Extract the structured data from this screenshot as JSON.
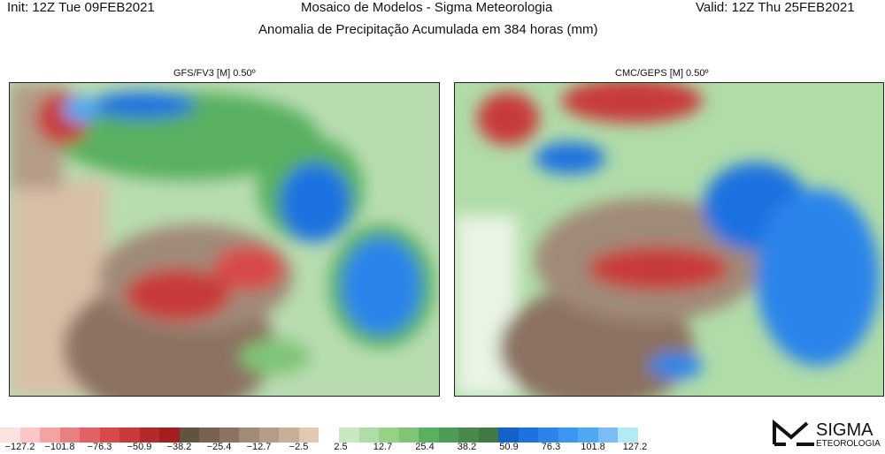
{
  "header": {
    "init": "Init: 12Z Tue 09FEB2021",
    "title": "Mosaico de Modelos - Sigma Meteorologia",
    "valid": "Valid: 12Z Thu 25FEB2021",
    "subtitle": "Anomalia de Precipitação Acumulada em 384 horas (mm)"
  },
  "panels": [
    {
      "title": "GFS/FV3 [M] 0.50º"
    },
    {
      "title": "CMC/GEPS [M] 0.50º"
    }
  ],
  "colorbar": {
    "negative_colors": [
      "#fde2e2",
      "#fcc6c6",
      "#f4a2a2",
      "#e98080",
      "#e06262",
      "#d84a4a",
      "#c83a3a",
      "#b22a2a",
      "#a21f1f",
      "#625242",
      "#786252",
      "#8c7262",
      "#a08a78",
      "#b49c88",
      "#c8b098",
      "#e2c8b0"
    ],
    "negative_labels": [
      "−127.2",
      "−101.8",
      "−76.3",
      "−50.9",
      "−38.2",
      "−25.4",
      "−12.7",
      "−2.5"
    ],
    "positive_colors": [
      "#c8e8c0",
      "#b0dca8",
      "#98d088",
      "#80c478",
      "#58b060",
      "#4e9c58",
      "#488a4c",
      "#427845",
      "#1462c8",
      "#1e72e0",
      "#2a84ea",
      "#3a96f0",
      "#4ea8f4",
      "#7cbcf6",
      "#b4eaf8"
    ],
    "positive_labels": [
      "2.5",
      "12.7",
      "25.4",
      "38.2",
      "50.9",
      "76.3",
      "101.8",
      "127.2"
    ]
  },
  "logo": {
    "text": "SIGMA METEOROLOGIA"
  }
}
